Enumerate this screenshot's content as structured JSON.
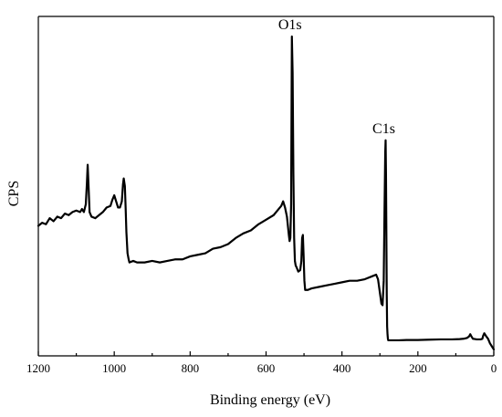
{
  "chart_data": {
    "type": "line",
    "title": "",
    "xlabel": "Binding energy (eV)",
    "ylabel": "CPS",
    "xlim": [
      1200,
      0
    ],
    "x_reversed": true,
    "xticks": [
      1200,
      1000,
      800,
      600,
      400,
      200,
      0
    ],
    "y_ticks_shown": false,
    "ylim": [
      0,
      100
    ],
    "grid": false,
    "legend": "none",
    "line_color": "#000000",
    "annotations": [
      {
        "text": "O1s",
        "x": 532,
        "y": 100
      },
      {
        "text": "C1s",
        "x": 285,
        "y": 66
      }
    ],
    "series": [
      {
        "values_units": "relative intensity (arbitrary, 0-100)",
        "x": [
          1200,
          1190,
          1180,
          1170,
          1160,
          1150,
          1140,
          1130,
          1120,
          1110,
          1100,
          1090,
          1085,
          1080,
          1075,
          1072,
          1070,
          1068,
          1065,
          1060,
          1050,
          1040,
          1030,
          1020,
          1010,
          1005,
          1000,
          995,
          990,
          985,
          980,
          977,
          975,
          972,
          970,
          968,
          965,
          962,
          960,
          950,
          940,
          920,
          900,
          880,
          860,
          840,
          820,
          800,
          780,
          760,
          740,
          720,
          700,
          680,
          660,
          640,
          620,
          600,
          580,
          570,
          560,
          555,
          550,
          545,
          540,
          538,
          536,
          534,
          532,
          530,
          528,
          526,
          524,
          522,
          520,
          515,
          510,
          507,
          505,
          503,
          501,
          499,
          497,
          495,
          490,
          480,
          460,
          440,
          420,
          400,
          380,
          360,
          340,
          320,
          310,
          305,
          300,
          296,
          293,
          290,
          288,
          286,
          285,
          284,
          283,
          282,
          281,
          280,
          279,
          278,
          275,
          270,
          250,
          230,
          200,
          170,
          140,
          110,
          90,
          80,
          70,
          65,
          62,
          60,
          55,
          50,
          45,
          40,
          35,
          30,
          28,
          25,
          20,
          15,
          10,
          5,
          0
        ],
        "y": [
          38.0,
          39.0,
          38.5,
          40.5,
          39.5,
          41.0,
          40.5,
          42.0,
          41.5,
          42.5,
          43.0,
          42.5,
          43.5,
          42.5,
          45.0,
          52.0,
          58.0,
          52.0,
          42.5,
          41.0,
          40.5,
          41.5,
          42.5,
          44.0,
          44.5,
          46.5,
          48.0,
          46.0,
          44.0,
          44.0,
          46.0,
          51.5,
          53.5,
          51.0,
          44.0,
          36.0,
          29.0,
          27.0,
          26.0,
          26.5,
          26.0,
          26.0,
          26.5,
          26.0,
          26.5,
          27.0,
          27.0,
          28.0,
          28.5,
          29.0,
          30.5,
          31.0,
          32.0,
          34.0,
          35.5,
          36.5,
          38.5,
          40.0,
          41.5,
          43.0,
          44.5,
          46.0,
          44.0,
          41.0,
          35.0,
          33.0,
          34.0,
          45.0,
          100.0,
          88.0,
          55.0,
          34.0,
          26.5,
          25.0,
          24.5,
          23.0,
          23.5,
          26.5,
          34.0,
          35.0,
          28.0,
          20.0,
          17.0,
          17.0,
          17.0,
          17.5,
          18.0,
          18.5,
          19.0,
          19.5,
          20.0,
          20.0,
          20.5,
          21.5,
          22.0,
          20.5,
          16.0,
          12.5,
          12.0,
          20.0,
          42.0,
          62.0,
          66.0,
          55.0,
          35.0,
          15.0,
          5.0,
          2.5,
          1.0,
          0.5,
          0.5,
          0.5,
          0.5,
          0.6,
          0.6,
          0.7,
          0.8,
          0.8,
          0.9,
          1.0,
          1.3,
          1.8,
          2.5,
          2.0,
          1.0,
          0.9,
          0.8,
          0.8,
          0.8,
          1.0,
          2.0,
          2.8,
          1.8,
          1.0,
          -0.5,
          -1.5,
          -2.5
        ]
      }
    ]
  }
}
